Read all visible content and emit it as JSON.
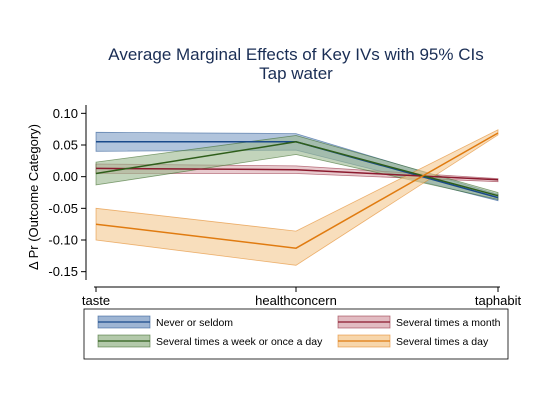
{
  "chart_data": {
    "type": "line",
    "title": "Average Marginal Effects of Key IVs with 95% CIs",
    "subtitle": "Tap water",
    "xlabel": "",
    "ylabel": "Δ Pr (Outcome Category)",
    "categories": [
      "taste",
      "healthconcern",
      "taphabit"
    ],
    "ylim": [
      -0.16,
      0.11
    ],
    "yticks": [
      0.1,
      0.05,
      0.0,
      -0.05,
      -0.1,
      -0.15
    ],
    "ytick_labels": [
      "0.10",
      "0.05",
      "0.00",
      "-0.05",
      "-0.10",
      "-0.15"
    ],
    "grid": false,
    "legend_position": "bottom",
    "series": [
      {
        "name": "Never or seldom",
        "values": [
          0.055,
          0.055,
          -0.033
        ],
        "lower": [
          0.04,
          0.042,
          -0.038
        ],
        "upper": [
          0.07,
          0.068,
          -0.028
        ],
        "line_color": "#1a4a8a",
        "fill_color": "#7d9cc4"
      },
      {
        "name": "Several times a month",
        "values": [
          0.013,
          0.011,
          -0.005
        ],
        "lower": [
          0.005,
          0.005,
          -0.008
        ],
        "upper": [
          0.02,
          0.017,
          -0.003
        ],
        "line_color": "#8b1a2e",
        "fill_color": "#d8a6ae"
      },
      {
        "name": "Several times a week or once a day",
        "values": [
          0.005,
          0.055,
          -0.03
        ],
        "lower": [
          -0.013,
          0.035,
          -0.036
        ],
        "upper": [
          0.023,
          0.065,
          -0.025
        ],
        "line_color": "#2e5e1a",
        "fill_color": "#9ab78e"
      },
      {
        "name": "Several times a day",
        "values": [
          -0.075,
          -0.113,
          0.069
        ],
        "lower": [
          -0.1,
          -0.14,
          0.066
        ],
        "upper": [
          -0.05,
          -0.086,
          0.074
        ],
        "line_color": "#e07b10",
        "fill_color": "#f4c88f"
      }
    ],
    "legend_order": [
      "Never or seldom",
      "Several times a month",
      "Several times a week or once a day",
      "Several times a day"
    ]
  }
}
